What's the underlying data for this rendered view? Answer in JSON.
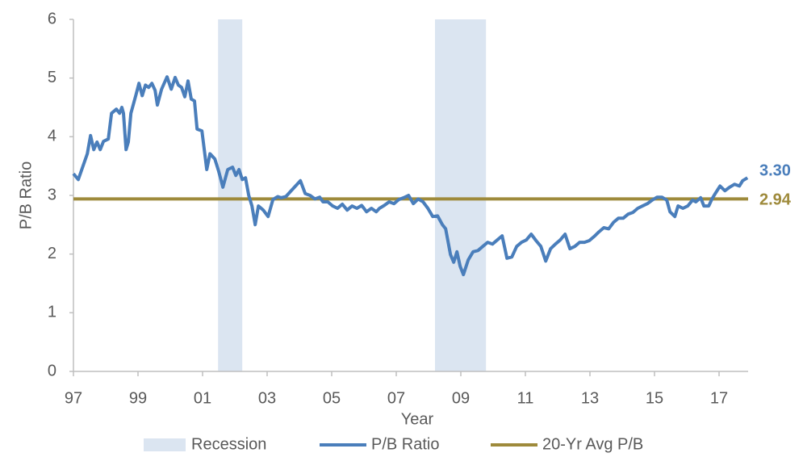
{
  "chart_data": {
    "type": "line",
    "x_label": "Year",
    "y_label": "P/B Ratio",
    "xlim": [
      1997,
      2017.9
    ],
    "xticks": [
      {
        "value": 1997,
        "label": "97"
      },
      {
        "value": 1999,
        "label": "99"
      },
      {
        "value": 2001,
        "label": "01"
      },
      {
        "value": 2003,
        "label": "03"
      },
      {
        "value": 2005,
        "label": "05"
      },
      {
        "value": 2007,
        "label": "07"
      },
      {
        "value": 2009,
        "label": "09"
      },
      {
        "value": 2011,
        "label": "11"
      },
      {
        "value": 2013,
        "label": "13"
      },
      {
        "value": 2015,
        "label": "15"
      },
      {
        "value": 2017,
        "label": "17"
      }
    ],
    "ylim": [
      0,
      6
    ],
    "yticks": [
      0,
      1,
      2,
      3,
      4,
      5,
      6
    ],
    "grid": false,
    "legend": "bottom",
    "recessions": {
      "name": "Recession",
      "color": "#dbe5f1",
      "ranges": [
        [
          2001.48,
          2002.23
        ],
        [
          2008.2,
          2009.78
        ]
      ]
    },
    "series": [
      {
        "name": "P/B Ratio",
        "color": "#4a7ebb",
        "end_label": "3.30",
        "x": [
          1997.0,
          1997.15,
          1997.43,
          1997.53,
          1997.63,
          1997.73,
          1997.83,
          1997.93,
          1998.08,
          1998.18,
          1998.33,
          1998.43,
          1998.5,
          1998.55,
          1998.63,
          1998.7,
          1998.78,
          1998.93,
          1999.03,
          1999.13,
          1999.23,
          1999.33,
          1999.43,
          1999.53,
          1999.6,
          1999.73,
          1999.9,
          2000.03,
          2000.15,
          2000.25,
          2000.35,
          2000.45,
          2000.55,
          2000.65,
          2000.75,
          2000.83,
          2000.98,
          2001.13,
          2001.23,
          2001.38,
          2001.5,
          2001.63,
          2001.78,
          2001.93,
          2002.03,
          2002.13,
          2002.23,
          2002.33,
          2002.43,
          2002.53,
          2002.63,
          2002.73,
          2002.88,
          2003.03,
          2003.18,
          2003.33,
          2003.43,
          2003.58,
          2003.73,
          2003.88,
          2004.03,
          2004.18,
          2004.33,
          2004.48,
          2004.63,
          2004.73,
          2004.88,
          2005.03,
          2005.18,
          2005.33,
          2005.48,
          2005.63,
          2005.78,
          2005.93,
          2006.08,
          2006.23,
          2006.38,
          2006.48,
          2006.63,
          2006.78,
          2006.93,
          2007.08,
          2007.23,
          2007.38,
          2007.53,
          2007.68,
          2007.83,
          2007.98,
          2008.13,
          2008.28,
          2008.43,
          2008.53,
          2008.68,
          2008.78,
          2008.88,
          2008.98,
          2009.08,
          2009.23,
          2009.38,
          2009.53,
          2009.68,
          2009.83,
          2009.98,
          2010.13,
          2010.28,
          2010.43,
          2010.58,
          2010.73,
          2010.88,
          2011.03,
          2011.18,
          2011.33,
          2011.48,
          2011.63,
          2011.78,
          2011.93,
          2012.08,
          2012.23,
          2012.38,
          2012.53,
          2012.68,
          2012.83,
          2012.98,
          2013.13,
          2013.28,
          2013.43,
          2013.58,
          2013.73,
          2013.88,
          2014.03,
          2014.18,
          2014.33,
          2014.48,
          2014.63,
          2014.78,
          2014.93,
          2015.08,
          2015.23,
          2015.38,
          2015.48,
          2015.63,
          2015.73,
          2015.88,
          2016.03,
          2016.18,
          2016.28,
          2016.43,
          2016.53,
          2016.68,
          2016.78,
          2016.88,
          2017.03,
          2017.18,
          2017.33,
          2017.48,
          2017.63,
          2017.73,
          2017.88
        ],
        "values": [
          3.37,
          3.27,
          3.71,
          4.02,
          3.78,
          3.91,
          3.78,
          3.92,
          3.96,
          4.4,
          4.47,
          4.4,
          4.5,
          4.4,
          3.78,
          3.91,
          4.4,
          4.7,
          4.91,
          4.7,
          4.88,
          4.84,
          4.91,
          4.79,
          4.54,
          4.81,
          5.02,
          4.81,
          5.01,
          4.88,
          4.84,
          4.68,
          4.95,
          4.64,
          4.61,
          4.13,
          4.1,
          3.44,
          3.71,
          3.62,
          3.41,
          3.14,
          3.44,
          3.48,
          3.34,
          3.44,
          3.27,
          3.3,
          3.0,
          2.82,
          2.5,
          2.82,
          2.75,
          2.64,
          2.93,
          2.98,
          2.96,
          2.98,
          3.07,
          3.16,
          3.25,
          3.03,
          3.0,
          2.94,
          2.97,
          2.89,
          2.89,
          2.82,
          2.78,
          2.85,
          2.75,
          2.82,
          2.78,
          2.83,
          2.72,
          2.78,
          2.72,
          2.78,
          2.83,
          2.89,
          2.86,
          2.93,
          2.96,
          3.0,
          2.86,
          2.94,
          2.89,
          2.78,
          2.64,
          2.65,
          2.5,
          2.43,
          1.99,
          1.86,
          2.04,
          1.79,
          1.65,
          1.9,
          2.04,
          2.06,
          2.13,
          2.2,
          2.17,
          2.24,
          2.31,
          1.93,
          1.95,
          2.13,
          2.2,
          2.24,
          2.34,
          2.23,
          2.13,
          1.88,
          2.09,
          2.17,
          2.24,
          2.34,
          2.09,
          2.13,
          2.2,
          2.2,
          2.23,
          2.3,
          2.38,
          2.45,
          2.43,
          2.54,
          2.61,
          2.61,
          2.68,
          2.71,
          2.78,
          2.82,
          2.86,
          2.92,
          2.97,
          2.97,
          2.92,
          2.72,
          2.64,
          2.82,
          2.78,
          2.82,
          2.92,
          2.89,
          2.96,
          2.82,
          2.82,
          2.94,
          3.03,
          3.16,
          3.08,
          3.14,
          3.19,
          3.16,
          3.25,
          3.3
        ]
      },
      {
        "name": "20-Yr Avg P/B",
        "color": "#9e8a3b",
        "value": 2.94,
        "end_label": "2.94"
      }
    ]
  }
}
